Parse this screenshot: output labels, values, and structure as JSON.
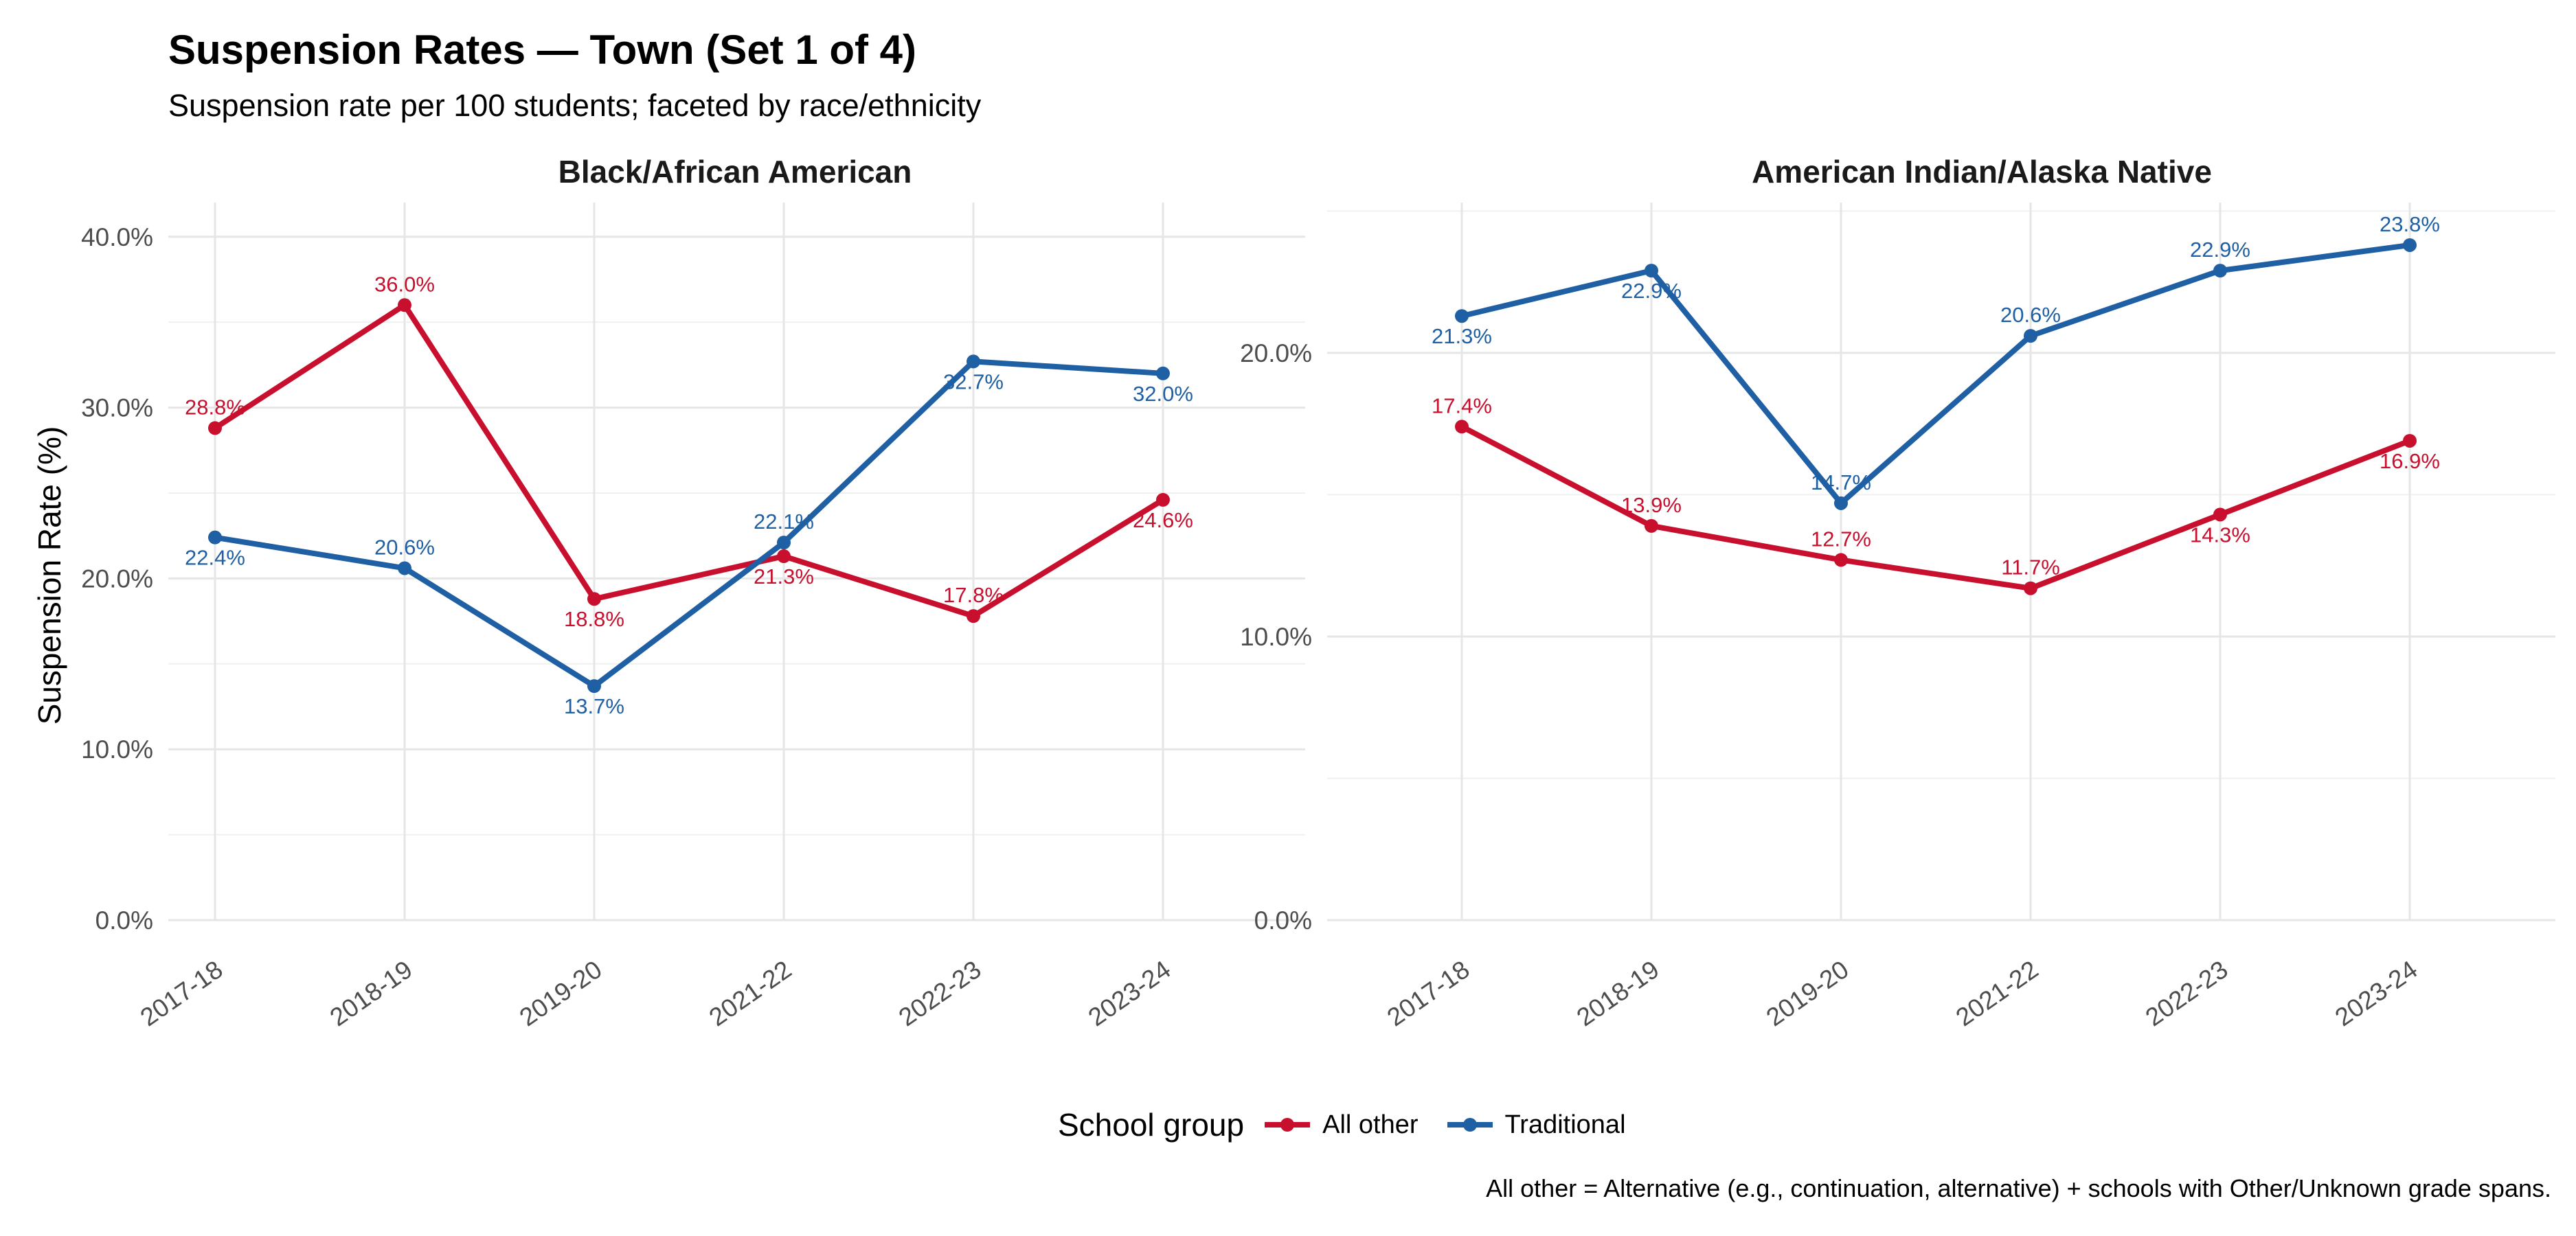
{
  "chart_data": {
    "type": "line",
    "title": "Suspension Rates — Town (Set 1 of 4)",
    "subtitle": "Suspension rate per 100 students; faceted by race/ethnicity",
    "ylabel": "Suspension Rate (%)",
    "xlabel": "",
    "grid": true,
    "legend": {
      "title": "School group",
      "position": "bottom",
      "entries": [
        "All other",
        "Traditional"
      ]
    },
    "colors": {
      "All other": "#c8102e",
      "Traditional": "#1f5fa3"
    },
    "caption": "All other = Alternative (e.g., continuation, alternative) + schools with Other/Unknown grade spans.",
    "categories": [
      "2017-18",
      "2018-19",
      "2019-20",
      "2021-22",
      "2022-23",
      "2023-24"
    ],
    "facets": [
      {
        "title": "Black/African American",
        "ylim": [
          0,
          42
        ],
        "yticks": [
          0,
          10,
          20,
          30,
          40
        ],
        "ytick_labels": [
          "0.0%",
          "10.0%",
          "20.0%",
          "30.0%",
          "40.0%"
        ],
        "series": [
          {
            "name": "All other",
            "values": [
              28.8,
              36.0,
              18.8,
              21.3,
              17.8,
              24.6
            ],
            "labels": [
              "28.8%",
              "36.0%",
              "18.8%",
              "21.3%",
              "17.8%",
              "24.6%"
            ]
          },
          {
            "name": "Traditional",
            "values": [
              22.4,
              20.6,
              13.7,
              22.1,
              32.7,
              32.0
            ],
            "labels": [
              "22.4%",
              "20.6%",
              "13.7%",
              "22.1%",
              "32.7%",
              "32.0%"
            ]
          }
        ]
      },
      {
        "title": "American Indian/Alaska Native",
        "ylim": [
          0,
          25.3
        ],
        "yticks": [
          0,
          10,
          20
        ],
        "ytick_labels": [
          "0.0%",
          "10.0%",
          "20.0%"
        ],
        "series": [
          {
            "name": "All other",
            "values": [
              17.4,
              13.9,
              12.7,
              11.7,
              14.3,
              16.9
            ],
            "labels": [
              "17.4%",
              "13.9%",
              "12.7%",
              "11.7%",
              "14.3%",
              "16.9%"
            ]
          },
          {
            "name": "Traditional",
            "values": [
              21.3,
              22.9,
              14.7,
              20.6,
              22.9,
              23.8
            ],
            "labels": [
              "21.3%",
              "22.9%",
              "14.7%",
              "20.6%",
              "22.9%",
              "23.8%"
            ]
          }
        ]
      }
    ]
  }
}
